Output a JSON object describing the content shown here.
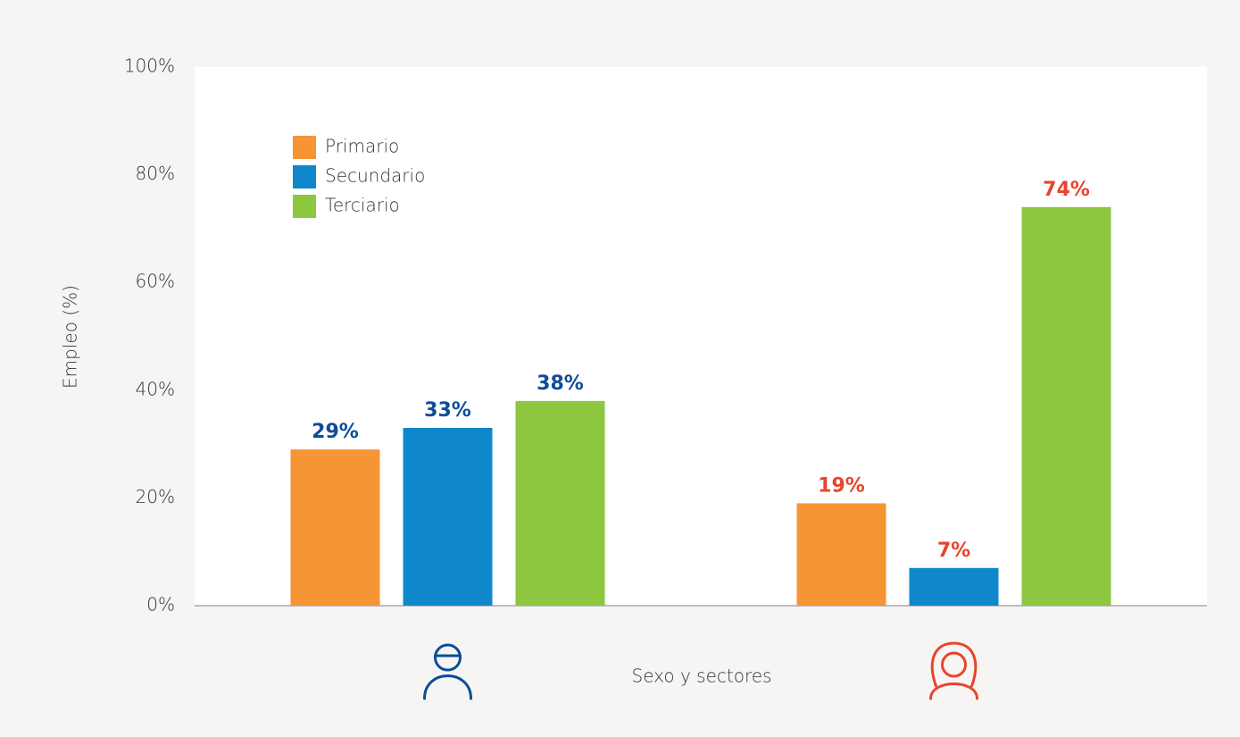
{
  "chart_data": {
    "type": "bar",
    "categories": [
      null,
      null
    ],
    "series": [
      {
        "name": "Primario",
        "color": "#f79433",
        "values": [
          29,
          19
        ],
        "value_labels": [
          "29%",
          "19%"
        ]
      },
      {
        "name": "Secundario",
        "color": "#0f88cb",
        "values": [
          33,
          7
        ],
        "value_labels": [
          "33%",
          "7%"
        ]
      },
      {
        "name": "Terciario",
        "color": "#8dc63f",
        "values": [
          38,
          74
        ],
        "value_labels": [
          "38%",
          "74%"
        ]
      }
    ],
    "group_colors": [
      "#0d4c9a",
      "#e8442e"
    ],
    "y_label": "Empleo (%)",
    "x_label": "Sexo y sectores",
    "ylim": [
      0,
      100
    ],
    "yticks": [
      {
        "value": 0,
        "label": "0%"
      },
      {
        "value": 20,
        "label": "20%"
      },
      {
        "value": 40,
        "label": "40%"
      },
      {
        "value": 60,
        "label": "60%"
      },
      {
        "value": 80,
        "label": "80%"
      },
      {
        "value": 100,
        "label": "100%"
      }
    ],
    "legend": "upper left",
    "grid": false
  }
}
